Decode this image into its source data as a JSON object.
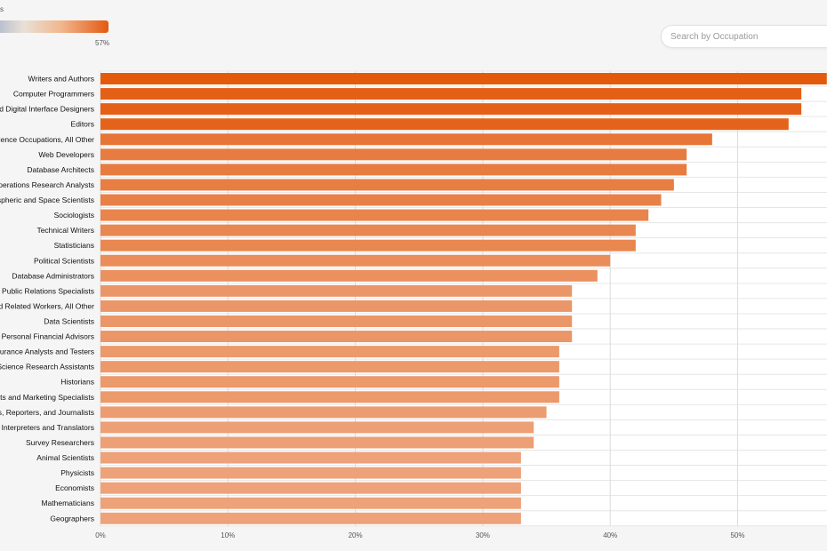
{
  "legend": {
    "top_label": "s",
    "max_label": "57%"
  },
  "search": {
    "placeholder": "Search by Occupation"
  },
  "chart_data": {
    "type": "bar",
    "orientation": "horizontal",
    "categories": [
      "Writers and Authors",
      "Computer Programmers",
      "and Digital Interface Designers",
      "Editors",
      "Science Occupations, All Other",
      "Web Developers",
      "Database Architects",
      "Operations Research Analysts",
      "nospheric and Space Scientists",
      "Sociologists",
      "Technical Writers",
      "Statisticians",
      "Political Scientists",
      "Database Administrators",
      "Public Relations Specialists",
      "and Related Workers, All Other",
      "Data Scientists",
      "Personal Financial Advisors",
      "ssurance Analysts and Testers",
      "al Science Research Assistants",
      "Historians",
      "ysts and Marketing Specialists",
      "sts, Reporters, and Journalists",
      "Interpreters and Translators",
      "Survey Researchers",
      "Animal Scientists",
      "Physicists",
      "Economists",
      "Mathematicians",
      "Geographers"
    ],
    "values": [
      57,
      55,
      55,
      54,
      48,
      46,
      46,
      45,
      44,
      43,
      42,
      42,
      40,
      39,
      37,
      37,
      37,
      37,
      36,
      36,
      36,
      36,
      35,
      34,
      34,
      33,
      33,
      33,
      33,
      33
    ],
    "x_ticks": [
      "0%",
      "10%",
      "20%",
      "30%",
      "40%",
      "50%"
    ],
    "xlim": [
      0,
      57
    ],
    "color_scale": {
      "min_color": "#eda27a",
      "max_color": "#e35a0d"
    },
    "grid": true
  }
}
